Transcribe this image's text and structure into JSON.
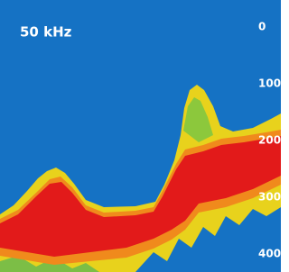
{
  "display": {
    "frequency": "50 kHz",
    "depth_scale": [
      0,
      100,
      200,
      300,
      400
    ]
  }
}
